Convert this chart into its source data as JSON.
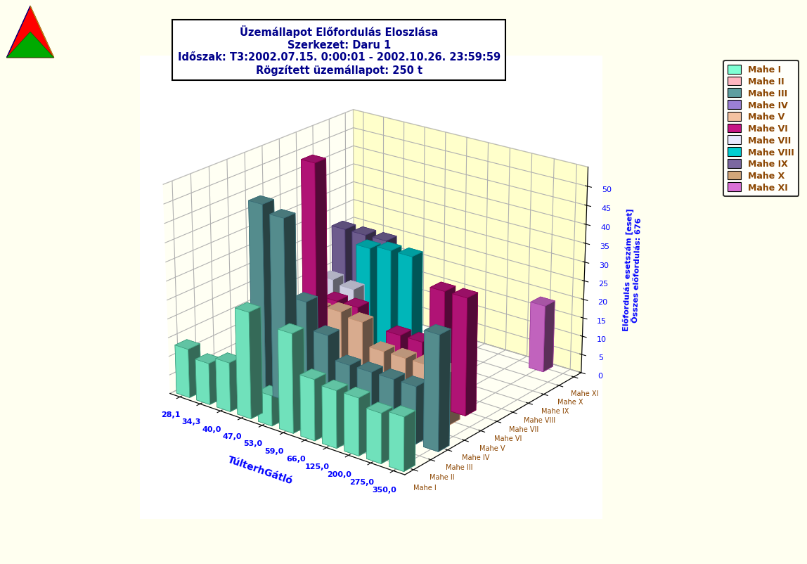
{
  "title_line1": "Üzemállapot Előfordulás Eloszlása",
  "title_line2": "Szerkezet: Daru 1",
  "title_line3": "Időszak: T3:2002.07.15. 0:00:01 - 2002.10.26. 23:59:59",
  "title_line4": "Rögzített üzemállapot: 250 t",
  "xlabel": "TúlterhGátló",
  "x_labels": [
    "28,1",
    "34,3",
    "40,0",
    "47,0",
    "53,0",
    "59,0",
    "66,0",
    "125,0",
    "200,0",
    "275,0",
    "350,0"
  ],
  "series_names": [
    "Mahe I",
    "Mahe II",
    "Mahe III",
    "Mahe IV",
    "Mahe V",
    "Mahe VI",
    "Mahe VII",
    "Mahe VIII",
    "Mahe IX",
    "Mahe X",
    "Mahe XI"
  ],
  "series_colors": [
    "#7fffd4",
    "#ffb6c1",
    "#5f9ea0",
    "#9b7fd4",
    "#f4c2a1",
    "#c71585",
    "#e8e8ff",
    "#00ced1",
    "#7b68a0",
    "#d2a679",
    "#da70d6"
  ],
  "series_colors_dark": [
    "#40a080",
    "#d08090",
    "#3a6e78",
    "#6a4fa0",
    "#c49070",
    "#8b0050",
    "#b0b0c8",
    "#008a90",
    "#4a3870",
    "#a07640",
    "#a040a0"
  ],
  "data": [
    [
      13,
      11,
      13,
      28,
      8,
      26,
      16,
      15,
      15,
      13,
      14
    ],
    [
      1,
      0,
      0,
      0,
      0,
      0,
      0,
      0,
      0,
      0,
      0
    ],
    [
      0,
      0,
      50,
      48,
      28,
      21,
      15,
      15,
      15,
      15,
      30
    ],
    [
      0,
      1,
      1,
      1,
      1,
      1,
      1,
      1,
      1,
      1,
      0
    ],
    [
      0,
      0,
      0,
      20,
      21,
      20,
      14,
      14,
      14,
      14,
      0
    ],
    [
      0,
      0,
      55,
      20,
      20,
      0,
      16,
      16,
      31,
      31,
      0
    ],
    [
      0,
      0,
      22,
      21,
      0,
      0,
      0,
      0,
      0,
      0,
      0
    ],
    [
      0,
      15,
      0,
      30,
      31,
      31,
      0,
      0,
      0,
      0,
      0
    ],
    [
      0,
      30,
      30,
      30,
      0,
      0,
      0,
      0,
      0,
      0,
      0
    ],
    [
      0,
      0,
      0,
      0,
      0,
      0,
      0,
      0,
      0,
      0,
      0
    ],
    [
      0,
      0,
      0,
      0,
      0,
      0,
      0,
      0,
      0,
      18,
      0
    ]
  ],
  "background_color": "#fffff0",
  "ylim": [
    0,
    55
  ],
  "yticks": [
    0,
    5,
    10,
    15,
    20,
    25,
    30,
    35,
    40,
    45,
    50
  ]
}
